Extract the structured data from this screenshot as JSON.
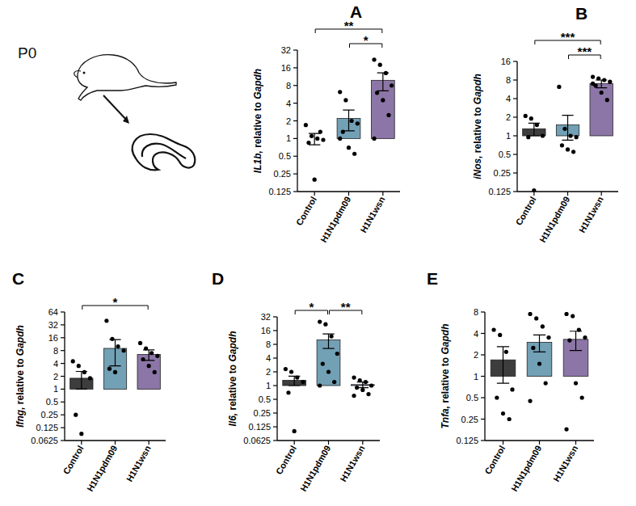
{
  "illustration": {
    "label": "P0"
  },
  "chart_data": [
    {
      "type": "bar",
      "title": "A",
      "y_label": "IL1b, relative to Gapdh",
      "log": "y",
      "categories": [
        "Control",
        "H1N1pdm09",
        "H1N1wsn"
      ],
      "colors": [
        "#3d3d3d",
        "#72a0b5",
        "#8c76a7"
      ],
      "values": [
        1.0,
        2.2,
        9.8
      ],
      "errors": [
        0.22,
        0.85,
        3.3
      ],
      "points": [
        [
          1.7,
          1.1,
          1.0,
          0.95,
          0.85,
          0.2,
          1.3
        ],
        [
          6.2,
          4.5,
          2.0,
          1.8,
          1.3,
          0.7,
          0.55,
          1.0
        ],
        [
          22,
          18,
          13,
          8,
          6,
          4.5,
          2.5,
          1.0
        ]
      ],
      "annotations": [
        {
          "from": 1,
          "to": 2,
          "label": "*"
        },
        {
          "from": 0,
          "to": 2,
          "label": "**"
        }
      ],
      "ylim": [
        0.125,
        32
      ],
      "yticks": [
        0.125,
        0.25,
        0.5,
        1,
        2,
        4,
        8,
        16,
        32
      ]
    },
    {
      "type": "bar",
      "title": "B",
      "y_label": "iNos, relative to Gapdh",
      "log": "y",
      "categories": [
        "Control",
        "H1N1pdm09",
        "H1N1wsn"
      ],
      "colors": [
        "#3d3d3d",
        "#72a0b5",
        "#8c76a7"
      ],
      "values": [
        1.3,
        1.5,
        7.0
      ],
      "errors": [
        0.3,
        0.65,
        1.0
      ],
      "points": [
        [
          2.1,
          1.9,
          1.5,
          1.0,
          0.95,
          0.13
        ],
        [
          6.2,
          1.3,
          1.0,
          0.95,
          0.7,
          0.6,
          0.55
        ],
        [
          9,
          8.5,
          8,
          7.5,
          6.5,
          5,
          3.8,
          7
        ]
      ],
      "annotations": [
        {
          "from": 1,
          "to": 2,
          "label": "***"
        },
        {
          "from": 0,
          "to": 2,
          "label": "***"
        }
      ],
      "ylim": [
        0.125,
        16
      ],
      "yticks": [
        0.125,
        0.25,
        0.5,
        1,
        2,
        4,
        8,
        16
      ]
    },
    {
      "type": "bar",
      "title": "C",
      "y_label": "Ifng, relative to Gapdh",
      "log": "y",
      "categories": [
        "Control",
        "H1N1pdm09",
        "H1N1wsn"
      ],
      "colors": [
        "#3d3d3d",
        "#72a0b5",
        "#8c76a7"
      ],
      "values": [
        1.8,
        9.0,
        6.5
      ],
      "errors": [
        0.8,
        5.5,
        1.8
      ],
      "points": [
        [
          4.5,
          3.5,
          2.5,
          1.8,
          0.25,
          0.09
        ],
        [
          40,
          15,
          10,
          8,
          3,
          2.5
        ],
        [
          12,
          9,
          7,
          6,
          5,
          3.5,
          2.5
        ]
      ],
      "annotations": [
        {
          "from": 0,
          "to": 2,
          "label": "*"
        }
      ],
      "ylim": [
        0.0625,
        64
      ],
      "yticks": [
        0.0625,
        0.125,
        0.25,
        0.5,
        1,
        2,
        4,
        8,
        16,
        32,
        64
      ]
    },
    {
      "type": "bar",
      "title": "D",
      "y_label": "Il6, relative to Gapdh",
      "log": "y",
      "categories": [
        "Control",
        "H1N1pdm09",
        "H1N1wsn"
      ],
      "colors": [
        "#3d3d3d",
        "#72a0b5",
        "#8c76a7"
      ],
      "values": [
        1.3,
        10.0,
        1.05
      ],
      "errors": [
        0.3,
        3.5,
        0.15
      ],
      "points": [
        [
          2.3,
          2.0,
          1.5,
          1.2,
          0.7,
          0.1
        ],
        [
          25,
          22,
          12,
          5,
          3,
          2,
          1.2,
          1.0
        ],
        [
          1.5,
          1.3,
          1.2,
          1.0,
          0.9,
          0.8,
          0.65,
          0.6
        ]
      ],
      "annotations": [
        {
          "from": 0,
          "to": 1,
          "label": "*"
        },
        {
          "from": 1,
          "to": 2,
          "label": "**"
        }
      ],
      "ylim": [
        0.0625,
        32
      ],
      "yticks": [
        0.0625,
        0.125,
        0.25,
        0.5,
        1,
        2,
        4,
        8,
        16,
        32
      ]
    },
    {
      "type": "bar",
      "title": "E",
      "y_label": "Tnfa, relative to Gapdh",
      "log": "y",
      "categories": [
        "Control",
        "H1N1pdm09",
        "H1N1wsn"
      ],
      "colors": [
        "#3d3d3d",
        "#72a0b5",
        "#8c76a7"
      ],
      "values": [
        1.7,
        3.0,
        3.3
      ],
      "errors": [
        0.9,
        0.8,
        1.0
      ],
      "points": [
        [
          4.5,
          3.8,
          2.2,
          0.65,
          0.5,
          0.3,
          0.25
        ],
        [
          7.5,
          6.5,
          5,
          3.5,
          2.5,
          1.5,
          0.8,
          0.45
        ],
        [
          7.5,
          7,
          4.5,
          3.5,
          3.2,
          0.8,
          0.5,
          0.18
        ]
      ],
      "annotations": [],
      "ylim": [
        0.125,
        8
      ],
      "yticks": [
        0.125,
        0.25,
        0.5,
        1,
        2,
        4,
        8
      ]
    }
  ]
}
